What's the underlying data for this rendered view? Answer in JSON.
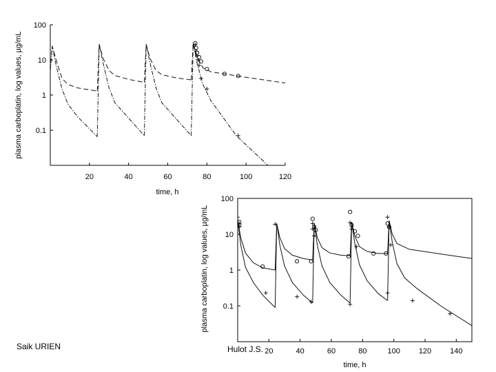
{
  "credits": {
    "left": "Saik URIEN",
    "right": "Hulot J.S."
  },
  "chart_data": [
    {
      "type": "line",
      "scale": "log-y",
      "xlabel": "time, h",
      "ylabel": "plasma carboplatin, log values, µg/mL",
      "xlim": [
        0,
        120
      ],
      "ylim": [
        0.01,
        100
      ],
      "xticks": [
        20,
        40,
        60,
        80,
        100,
        120
      ],
      "xtick_labels": [
        "20",
        "40",
        "60",
        "80",
        "100",
        "120"
      ],
      "yticks": [
        0.1,
        1,
        10,
        100
      ],
      "ytick_labels": [
        "0.1",
        "1",
        "10",
        "100"
      ],
      "frame": "axes-only",
      "series": [
        {
          "style": "dashed",
          "marker": "none",
          "segments": [
            [
              [
                0,
                5
              ],
              [
                1,
                25
              ],
              [
                3,
                10
              ],
              [
                6,
                3
              ],
              [
                9,
                2
              ],
              [
                14,
                1.6
              ],
              [
                24,
                1.3
              ]
            ],
            [
              [
                24,
                1.3
              ],
              [
                25,
                28
              ],
              [
                27,
                11
              ],
              [
                30,
                5
              ],
              [
                33,
                3.6
              ],
              [
                40,
                2.8
              ],
              [
                48,
                2.3
              ]
            ],
            [
              [
                48,
                2.3
              ],
              [
                49,
                28
              ],
              [
                51,
                11
              ],
              [
                54,
                5
              ],
              [
                57,
                3.8
              ],
              [
                64,
                3.1
              ],
              [
                72,
                2.7
              ]
            ],
            [
              [
                72,
                2.7
              ],
              [
                73,
                30
              ],
              [
                75,
                12
              ],
              [
                78,
                6
              ],
              [
                82,
                4.6
              ],
              [
                100,
                3.2
              ],
              [
                120,
                2.2
              ]
            ]
          ]
        },
        {
          "style": "dash-dot",
          "marker": "none",
          "segments": [
            [
              [
                0,
                5
              ],
              [
                1,
                25
              ],
              [
                3,
                7
              ],
              [
                6,
                1.5
              ],
              [
                9,
                0.55
              ],
              [
                14,
                0.24
              ],
              [
                24,
                0.065
              ]
            ],
            [
              [
                24,
                0.065
              ],
              [
                25,
                28
              ],
              [
                27,
                8
              ],
              [
                30,
                1.6
              ],
              [
                33,
                0.6
              ],
              [
                40,
                0.22
              ],
              [
                48,
                0.07
              ]
            ],
            [
              [
                48,
                0.07
              ],
              [
                49,
                28
              ],
              [
                51,
                8
              ],
              [
                54,
                1.6
              ],
              [
                57,
                0.6
              ],
              [
                64,
                0.22
              ],
              [
                72,
                0.07
              ]
            ],
            [
              [
                72,
                0.07
              ],
              [
                73,
                30
              ],
              [
                75,
                8
              ],
              [
                78,
                2
              ],
              [
                82,
                0.7
              ],
              [
                95,
                0.07
              ],
              [
                112,
                0.009
              ]
            ]
          ]
        }
      ],
      "markers_circle": [
        [
          74,
          30
        ],
        [
          74.5,
          22
        ],
        [
          75,
          16
        ],
        [
          76,
          12
        ],
        [
          77,
          9
        ],
        [
          80,
          5.5
        ],
        [
          89,
          4
        ],
        [
          96,
          3.5
        ]
      ],
      "markers_plus": [
        [
          74,
          27
        ],
        [
          74.5,
          18
        ],
        [
          75,
          13
        ],
        [
          75.5,
          10
        ],
        [
          76,
          7
        ],
        [
          77,
          3
        ],
        [
          80,
          1.5
        ],
        [
          96,
          0.07
        ]
      ]
    },
    {
      "type": "line",
      "scale": "log-y",
      "xlabel": "time, h",
      "ylabel": "plasma carboplatin, log values, µg/mL",
      "xlim": [
        0,
        150
      ],
      "ylim": [
        0.01,
        100
      ],
      "xticks": [
        20,
        40,
        60,
        80,
        100,
        120,
        140
      ],
      "xtick_labels": [
        "20",
        "40",
        "60",
        "80",
        "100",
        "120",
        "140"
      ],
      "yticks": [
        0.1,
        1,
        10,
        100
      ],
      "ytick_labels": [
        "0.1",
        "1",
        "10",
        "100"
      ],
      "frame": "box",
      "series": [
        {
          "style": "solid",
          "marker": "none",
          "segments": [
            [
              [
                0,
                25
              ],
              [
                2,
                8
              ],
              [
                5,
                3
              ],
              [
                10,
                1.6
              ],
              [
                16,
                1.15
              ],
              [
                24,
                1.0
              ]
            ],
            [
              [
                24,
                1.0
              ],
              [
                25,
                20
              ],
              [
                27,
                8
              ],
              [
                30,
                4
              ],
              [
                35,
                2.6
              ],
              [
                42,
                2.1
              ],
              [
                48,
                1.9
              ]
            ],
            [
              [
                48,
                1.9
              ],
              [
                49,
                20
              ],
              [
                51,
                8
              ],
              [
                54,
                4.2
              ],
              [
                59,
                3.0
              ],
              [
                66,
                2.6
              ],
              [
                72,
                2.5
              ]
            ],
            [
              [
                72,
                2.5
              ],
              [
                73,
                22
              ],
              [
                75,
                9
              ],
              [
                78,
                4.5
              ],
              [
                83,
                3.3
              ],
              [
                90,
                2.9
              ],
              [
                96,
                2.9
              ]
            ],
            [
              [
                96,
                2.9
              ],
              [
                97,
                24
              ],
              [
                99,
                10
              ],
              [
                102,
                5.5
              ],
              [
                110,
                3.8
              ],
              [
                130,
                2.8
              ],
              [
                150,
                2.1
              ]
            ]
          ]
        },
        {
          "style": "solid",
          "marker": "none",
          "segments": [
            [
              [
                0,
                25
              ],
              [
                2,
                5
              ],
              [
                5,
                1.2
              ],
              [
                10,
                0.45
              ],
              [
                16,
                0.2
              ],
              [
                24,
                0.09
              ]
            ],
            [
              [
                24,
                0.09
              ],
              [
                25,
                20
              ],
              [
                27,
                5
              ],
              [
                30,
                1.3
              ],
              [
                35,
                0.45
              ],
              [
                42,
                0.2
              ],
              [
                48,
                0.12
              ]
            ],
            [
              [
                48,
                0.12
              ],
              [
                49,
                20
              ],
              [
                51,
                5
              ],
              [
                54,
                1.3
              ],
              [
                59,
                0.45
              ],
              [
                66,
                0.2
              ],
              [
                72,
                0.12
              ]
            ],
            [
              [
                72,
                0.12
              ],
              [
                73,
                22
              ],
              [
                75,
                5.5
              ],
              [
                78,
                1.4
              ],
              [
                83,
                0.5
              ],
              [
                90,
                0.22
              ],
              [
                96,
                0.14
              ]
            ],
            [
              [
                96,
                0.14
              ],
              [
                97,
                24
              ],
              [
                99,
                6
              ],
              [
                102,
                1.5
              ],
              [
                107,
                0.6
              ],
              [
                115,
                0.3
              ],
              [
                130,
                0.1
              ],
              [
                150,
                0.028
              ]
            ]
          ]
        }
      ],
      "markers_circle": [
        [
          1,
          22
        ],
        [
          1,
          18
        ],
        [
          16,
          1.25
        ],
        [
          38,
          1.75
        ],
        [
          47,
          1.75
        ],
        [
          48,
          27
        ],
        [
          49,
          16
        ],
        [
          50,
          13
        ],
        [
          71,
          2.4
        ],
        [
          72,
          42
        ],
        [
          73,
          18
        ],
        [
          75,
          12
        ],
        [
          77,
          9
        ],
        [
          87,
          2.9
        ],
        [
          95,
          2.9
        ],
        [
          96,
          20
        ],
        [
          97,
          16
        ]
      ],
      "markers_plus": [
        [
          0,
          30
        ],
        [
          1,
          20
        ],
        [
          1,
          16
        ],
        [
          18,
          0.23
        ],
        [
          24,
          19
        ],
        [
          38,
          0.18
        ],
        [
          47,
          0.13
        ],
        [
          48,
          20
        ],
        [
          48,
          14
        ],
        [
          49,
          9
        ],
        [
          72,
          0.11
        ],
        [
          72,
          21
        ],
        [
          73,
          14
        ],
        [
          76,
          4.5
        ],
        [
          96,
          0.23
        ],
        [
          96,
          30
        ],
        [
          97,
          16
        ],
        [
          98,
          5
        ],
        [
          112,
          0.14
        ],
        [
          136,
          0.06
        ]
      ]
    }
  ]
}
